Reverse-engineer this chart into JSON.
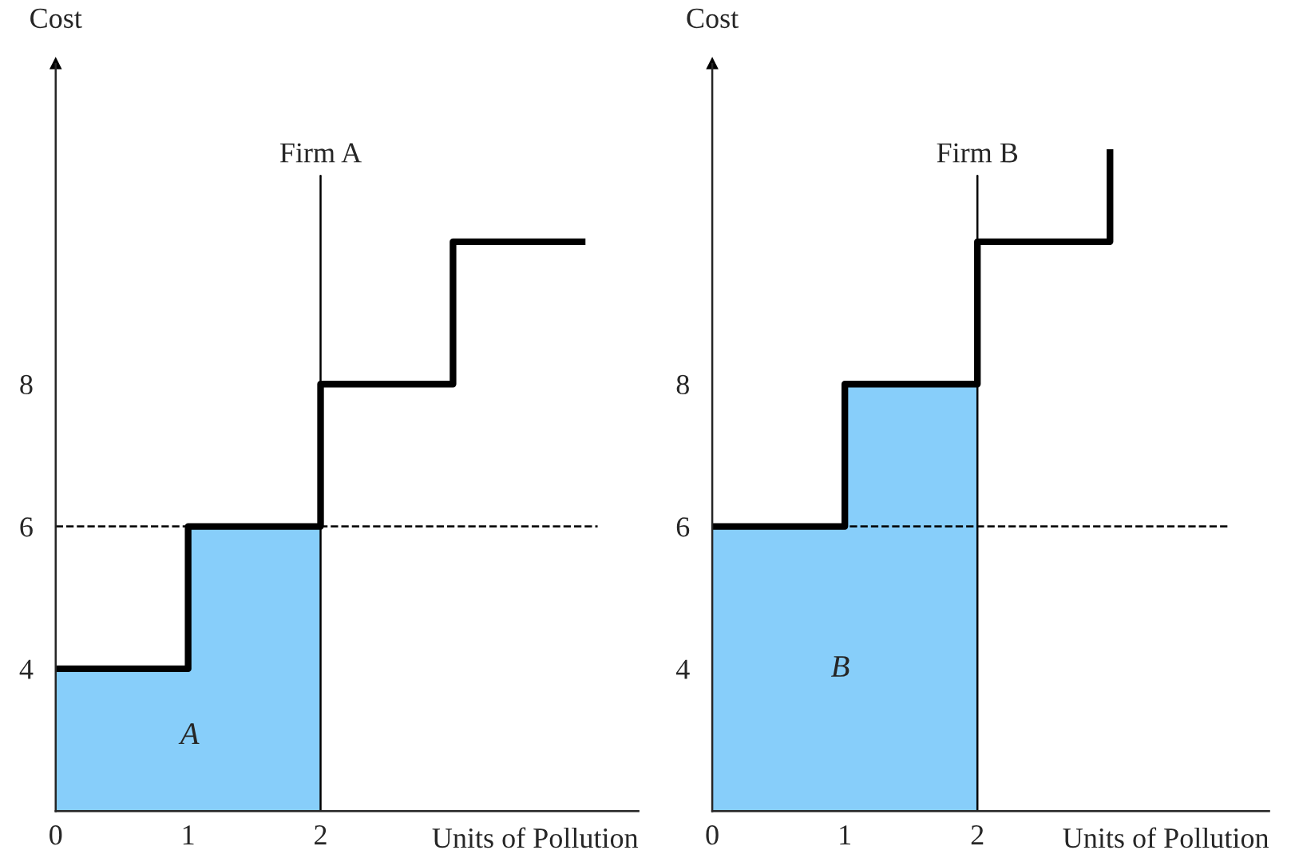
{
  "chart_data": [
    {
      "type": "line",
      "ylabel": "Cost",
      "xlabel": "Units of Pollution",
      "xlim": [
        0,
        4.4
      ],
      "ylim": [
        2,
        12.5
      ],
      "xticks": [
        0,
        1,
        2
      ],
      "yticks": [
        4,
        6,
        8
      ],
      "series": [
        {
          "type": "area",
          "color": "#87cefa",
          "x": [
            0,
            1,
            1,
            2
          ],
          "values": [
            4,
            4,
            6,
            6
          ]
        },
        {
          "color": "#000000",
          "x": [
            0,
            1,
            1,
            2,
            2,
            3,
            3,
            4
          ],
          "values": [
            4,
            4,
            6,
            6,
            8,
            8,
            10,
            10
          ]
        }
      ],
      "ref_lines": [
        {
          "axis": "x",
          "value": 2,
          "label": "Firm A",
          "color": "#000000"
        },
        {
          "axis": "y",
          "value": 6,
          "line_style": "dashed",
          "color": "#000000"
        }
      ],
      "annotations": [
        "A"
      ]
    },
    {
      "type": "line",
      "ylabel": "Cost",
      "xlabel": "Units of Pollution",
      "xlim": [
        0,
        4.2
      ],
      "ylim": [
        2,
        12.5
      ],
      "xticks": [
        0,
        1,
        2
      ],
      "yticks": [
        4,
        6,
        8
      ],
      "series": [
        {
          "type": "area",
          "color": "#87cefa",
          "x": [
            0,
            1,
            1,
            2
          ],
          "values": [
            6,
            6,
            8,
            8
          ]
        },
        {
          "color": "#000000",
          "x": [
            0,
            1,
            1,
            2,
            2,
            3,
            3
          ],
          "values": [
            6,
            6,
            8,
            8,
            10,
            10,
            11.3
          ]
        }
      ],
      "ref_lines": [
        {
          "axis": "x",
          "value": 2,
          "label": "Firm B",
          "color": "#000000"
        },
        {
          "axis": "y",
          "value": 6,
          "line_style": "dashed",
          "color": "#000000"
        }
      ],
      "annotations": [
        "B"
      ]
    }
  ]
}
